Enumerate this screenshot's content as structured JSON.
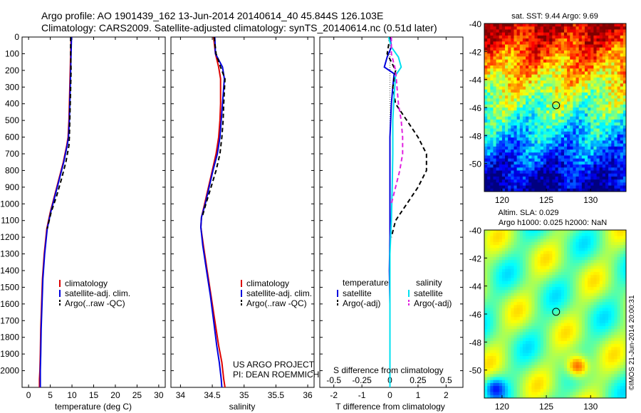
{
  "header": {
    "line1": "Argo profile: AO 1901439_162 13-Jun-2014 20140614_40 45.844S 126.103E",
    "line2": "Climatology: CARS2009. Satellite-adjusted climatology: synTS_20140614.nc (0.51d later)"
  },
  "colors": {
    "climatology": "#dd0000",
    "satellite": "#0000dd",
    "argo": "#000000",
    "cyan": "#00e0f0",
    "magenta": "#e020e0"
  },
  "chart_data": [
    {
      "type": "line",
      "panel": "temperature",
      "xlabel": "temperature (deg C)",
      "ylabel": "",
      "xlim": [
        -1.5,
        31.5
      ],
      "ylim": [
        2100,
        0
      ],
      "xticks": [
        0,
        5,
        10,
        15,
        20,
        25,
        30
      ],
      "yticks": [
        0,
        100,
        200,
        300,
        400,
        500,
        600,
        700,
        800,
        900,
        1000,
        1100,
        1200,
        1300,
        1400,
        1500,
        1600,
        1700,
        1800,
        1900,
        2000
      ],
      "legend": [
        "climatology",
        "satellite-adj. clim.",
        "Argo(..raw -QC)"
      ],
      "legend_position": "lower-right",
      "series": [
        {
          "name": "climatology",
          "style": "solid",
          "x": [
            9.8,
            9.7,
            9.6,
            9.5,
            9.4,
            9.3,
            9.1,
            8.8,
            8.0,
            7.0,
            6.0,
            5.0,
            4.2,
            3.6,
            3.2,
            3.0,
            2.8,
            2.7,
            2.6,
            2.5,
            2.5,
            2.5
          ],
          "y": [
            0,
            100,
            200,
            300,
            400,
            500,
            600,
            650,
            750,
            850,
            950,
            1050,
            1150,
            1300,
            1450,
            1600,
            1750,
            1900,
            2000,
            2050,
            2100,
            2100
          ]
        },
        {
          "name": "satellite-adj. clim.",
          "style": "solid",
          "x": [
            9.9,
            9.8,
            9.7,
            9.6,
            9.5,
            9.4,
            9.2,
            8.9,
            8.1,
            7.1,
            6.1,
            5.1,
            4.3,
            3.7,
            3.3,
            3.1,
            2.9,
            2.8,
            2.7,
            2.7,
            2.7,
            2.7
          ],
          "y": [
            0,
            100,
            200,
            300,
            400,
            500,
            600,
            650,
            750,
            850,
            950,
            1050,
            1150,
            1300,
            1450,
            1600,
            1750,
            1900,
            2000,
            2050,
            2100,
            2100
          ]
        },
        {
          "name": "Argo(..raw -QC)",
          "style": "dashed",
          "x": [
            9.7,
            9.7,
            9.8,
            9.7,
            9.6,
            9.5,
            9.4,
            9.3,
            8.6,
            7.6,
            6.5,
            5.2,
            4.3
          ],
          "y": [
            0,
            100,
            200,
            300,
            400,
            500,
            600,
            650,
            750,
            850,
            950,
            1050,
            1150
          ]
        }
      ]
    },
    {
      "type": "line",
      "panel": "salinity",
      "xlabel": "salinity",
      "ylabel": "",
      "xlim": [
        33.85,
        36.1
      ],
      "ylim": [
        2100,
        0
      ],
      "xticks": [
        34,
        34.5,
        35,
        35.5,
        36
      ],
      "xticklabels": [
        "34",
        "34.5",
        "35",
        "35.5",
        "36"
      ],
      "legend": [
        "climatology",
        "satellite-adj. clim.",
        "Argo(..raw -QC)"
      ],
      "legend_position": "lower-right",
      "series": [
        {
          "name": "climatology",
          "style": "solid",
          "x": [
            34.52,
            34.55,
            34.6,
            34.63,
            34.63,
            34.62,
            34.6,
            34.56,
            34.5,
            34.44,
            34.38,
            34.33,
            34.32,
            34.36,
            34.42,
            34.48,
            34.54,
            34.6,
            34.65,
            34.68,
            34.7
          ],
          "y": [
            0,
            100,
            180,
            250,
            400,
            500,
            600,
            700,
            800,
            900,
            1000,
            1080,
            1140,
            1250,
            1400,
            1550,
            1700,
            1850,
            1950,
            2050,
            2100
          ]
        },
        {
          "name": "satellite-adj. clim.",
          "style": "solid",
          "x": [
            34.54,
            34.55,
            34.66,
            34.69,
            34.66,
            34.64,
            34.62,
            34.58,
            34.51,
            34.45,
            34.39,
            34.33,
            34.32,
            34.35,
            34.41,
            34.47,
            34.52,
            34.57,
            34.61,
            34.64,
            34.65
          ],
          "y": [
            0,
            100,
            180,
            250,
            400,
            500,
            600,
            700,
            800,
            900,
            1000,
            1080,
            1140,
            1250,
            1400,
            1550,
            1700,
            1850,
            1950,
            2050,
            2100
          ]
        },
        {
          "name": "Argo(..raw -QC)",
          "style": "dashed",
          "x": [
            34.53,
            34.56,
            34.63,
            34.7,
            34.68,
            34.67,
            34.65,
            34.62,
            34.56,
            34.48,
            34.4,
            34.34
          ],
          "y": [
            0,
            100,
            180,
            250,
            400,
            500,
            600,
            700,
            800,
            900,
            1000,
            1080
          ]
        }
      ],
      "annotations": [
        "US ARGO PROJECT",
        "PI: DEAN ROEMMICH"
      ]
    },
    {
      "type": "line",
      "panel": "difference",
      "xlabel": "T difference from climatology",
      "xlabel_top": "S difference from climatology",
      "xlim": [
        -2.5,
        2.6
      ],
      "ylim": [
        2100,
        0
      ],
      "xticks": [
        -2,
        -1,
        0,
        1,
        2
      ],
      "xticklabels": [
        "-2",
        "-1",
        "0",
        "1",
        "2"
      ],
      "sticks": [
        -0.5,
        -0.25,
        0,
        0.25,
        0.5
      ],
      "sticklabels": [
        "-0.5",
        "-0.25",
        "0",
        "0.25",
        "0.5"
      ],
      "legend_titles": [
        "temperature",
        "salinity"
      ],
      "legend": [
        "satellite",
        "Argo(-adj)",
        "satellite",
        "Argo(-adj)"
      ],
      "legend_position": "lower-center",
      "series": [
        {
          "name": "satellite",
          "group": "temperature",
          "style": "solid",
          "x": [
            0.0,
            0.05,
            -0.1,
            -0.2,
            0.15,
            0.1,
            0.05,
            0.0,
            0.0,
            0.0,
            0.0,
            -0.02,
            0.0,
            0.0,
            0.0,
            0.0
          ],
          "y": [
            0,
            60,
            120,
            180,
            220,
            300,
            400,
            600,
            800,
            1000,
            1200,
            1400,
            1600,
            1800,
            2000,
            2100
          ]
        },
        {
          "name": "Argo(-adj)",
          "group": "temperature",
          "style": "dashed",
          "x": [
            0.0,
            -0.1,
            0.2,
            0.1,
            0.2,
            0.6,
            1.0,
            1.3,
            1.3,
            1.0,
            0.6,
            0.2,
            0.05
          ],
          "y": [
            0,
            100,
            200,
            300,
            400,
            500,
            600,
            700,
            800,
            900,
            1000,
            1100,
            1200
          ]
        },
        {
          "name": "satellite",
          "group": "salinity",
          "style": "solid",
          "x": [
            -0.05,
            0.05,
            0.3,
            0.4,
            0.2,
            0.15,
            0.1,
            0.1,
            0.08,
            0.05,
            0.0,
            0.0,
            0.0
          ],
          "y": [
            0,
            60,
            120,
            180,
            230,
            350,
            500,
            700,
            900,
            1100,
            1300,
            1600,
            2100
          ]
        },
        {
          "name": "Argo(-adj)",
          "group": "salinity",
          "style": "dashed",
          "x": [
            0.05,
            0.05,
            0.2,
            0.25,
            0.3,
            0.4,
            0.45,
            0.45,
            0.35,
            0.2,
            0.05
          ],
          "y": [
            0,
            100,
            200,
            300,
            400,
            500,
            600,
            700,
            800,
            900,
            1000
          ]
        }
      ]
    },
    {
      "type": "heatmap",
      "panel": "map-sst",
      "title": "sat. SST: 9.44  Argo: 9.69",
      "xlim": [
        118,
        134
      ],
      "ylim": [
        -52,
        -40
      ],
      "xticks": [
        120,
        125,
        130
      ],
      "yticks": [
        -40,
        -42,
        -44,
        -46,
        -48,
        -50
      ],
      "marker": {
        "lon": 126.1,
        "lat": -45.84
      }
    },
    {
      "type": "heatmap",
      "panel": "map-sla",
      "title_lines": [
        "Altim. SLA: 0.029",
        "Argo h1000: 0.025 h2000: NaN"
      ],
      "xlim": [
        118,
        134
      ],
      "ylim": [
        -52,
        -40
      ],
      "xticks": [
        120,
        125,
        130
      ],
      "yticks": [
        -40,
        -42,
        -44,
        -46,
        -48,
        -50
      ],
      "marker": {
        "lon": 126.1,
        "lat": -45.84
      },
      "side_label": "©IMOS 21-Jun-2014 20:00:31"
    }
  ]
}
